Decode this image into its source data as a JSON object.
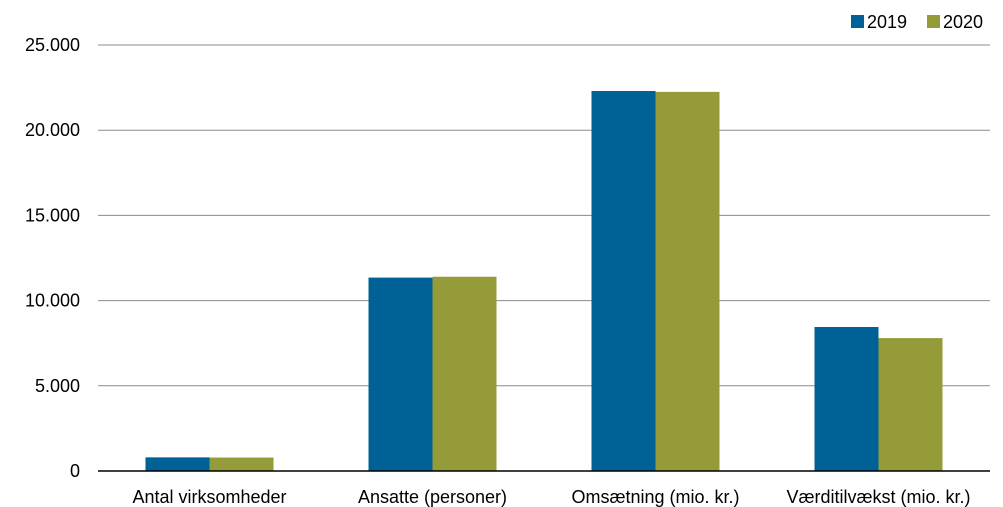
{
  "chart_data": {
    "type": "bar",
    "categories": [
      "Antal virksomheder",
      "Ansatte (personer)",
      "Omsætning (mio. kr.)",
      "Værditilvækst (mio. kr.)"
    ],
    "series": [
      {
        "name": "2019",
        "values": [
          800,
          11350,
          22300,
          8450
        ],
        "color": "#006196"
      },
      {
        "name": "2020",
        "values": [
          790,
          11400,
          22250,
          7800
        ],
        "color": "#969b3a"
      }
    ],
    "ylim": [
      0,
      25000
    ],
    "yticks": [
      0,
      5000,
      10000,
      15000,
      20000,
      25000
    ],
    "ytick_labels": [
      "0",
      "5.000",
      "10.000",
      "15.000",
      "20.000",
      "25.000"
    ],
    "grid": true,
    "legend_position": "top-right",
    "xlabel": "",
    "ylabel": ""
  }
}
